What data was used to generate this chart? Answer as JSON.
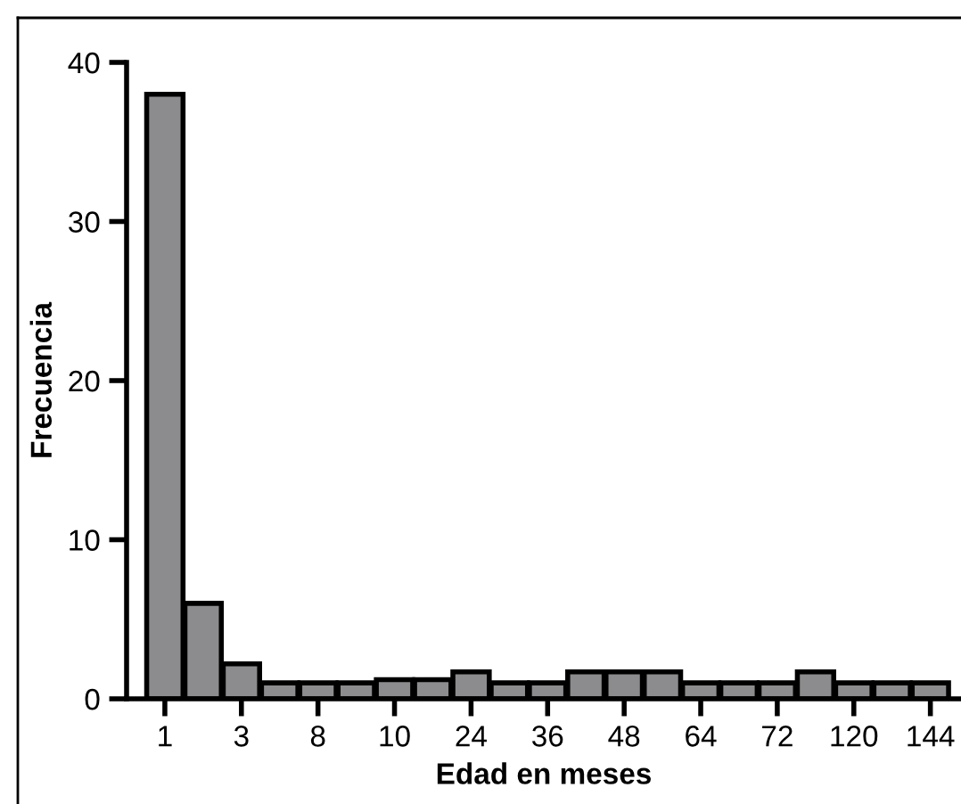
{
  "chart_data": {
    "type": "bar",
    "xlabel": "Edad en meses",
    "ylabel": "Frecuencia",
    "categories": [
      "1",
      null,
      "3",
      null,
      "8",
      null,
      "10",
      null,
      "24",
      null,
      "36",
      null,
      "48",
      null,
      "64",
      null,
      "72",
      null,
      "120",
      null,
      "144"
    ],
    "values": [
      38,
      6,
      2.2,
      1,
      1,
      1,
      1.2,
      1.2,
      1.7,
      1,
      1,
      1.7,
      1.7,
      1.7,
      1,
      1,
      1,
      1.7,
      1,
      1,
      1
    ],
    "color": "#8c8c8e",
    "ylim": [
      0,
      40
    ],
    "yticks": [
      0,
      10,
      20,
      30,
      40
    ],
    "grid": false,
    "legend": false
  }
}
